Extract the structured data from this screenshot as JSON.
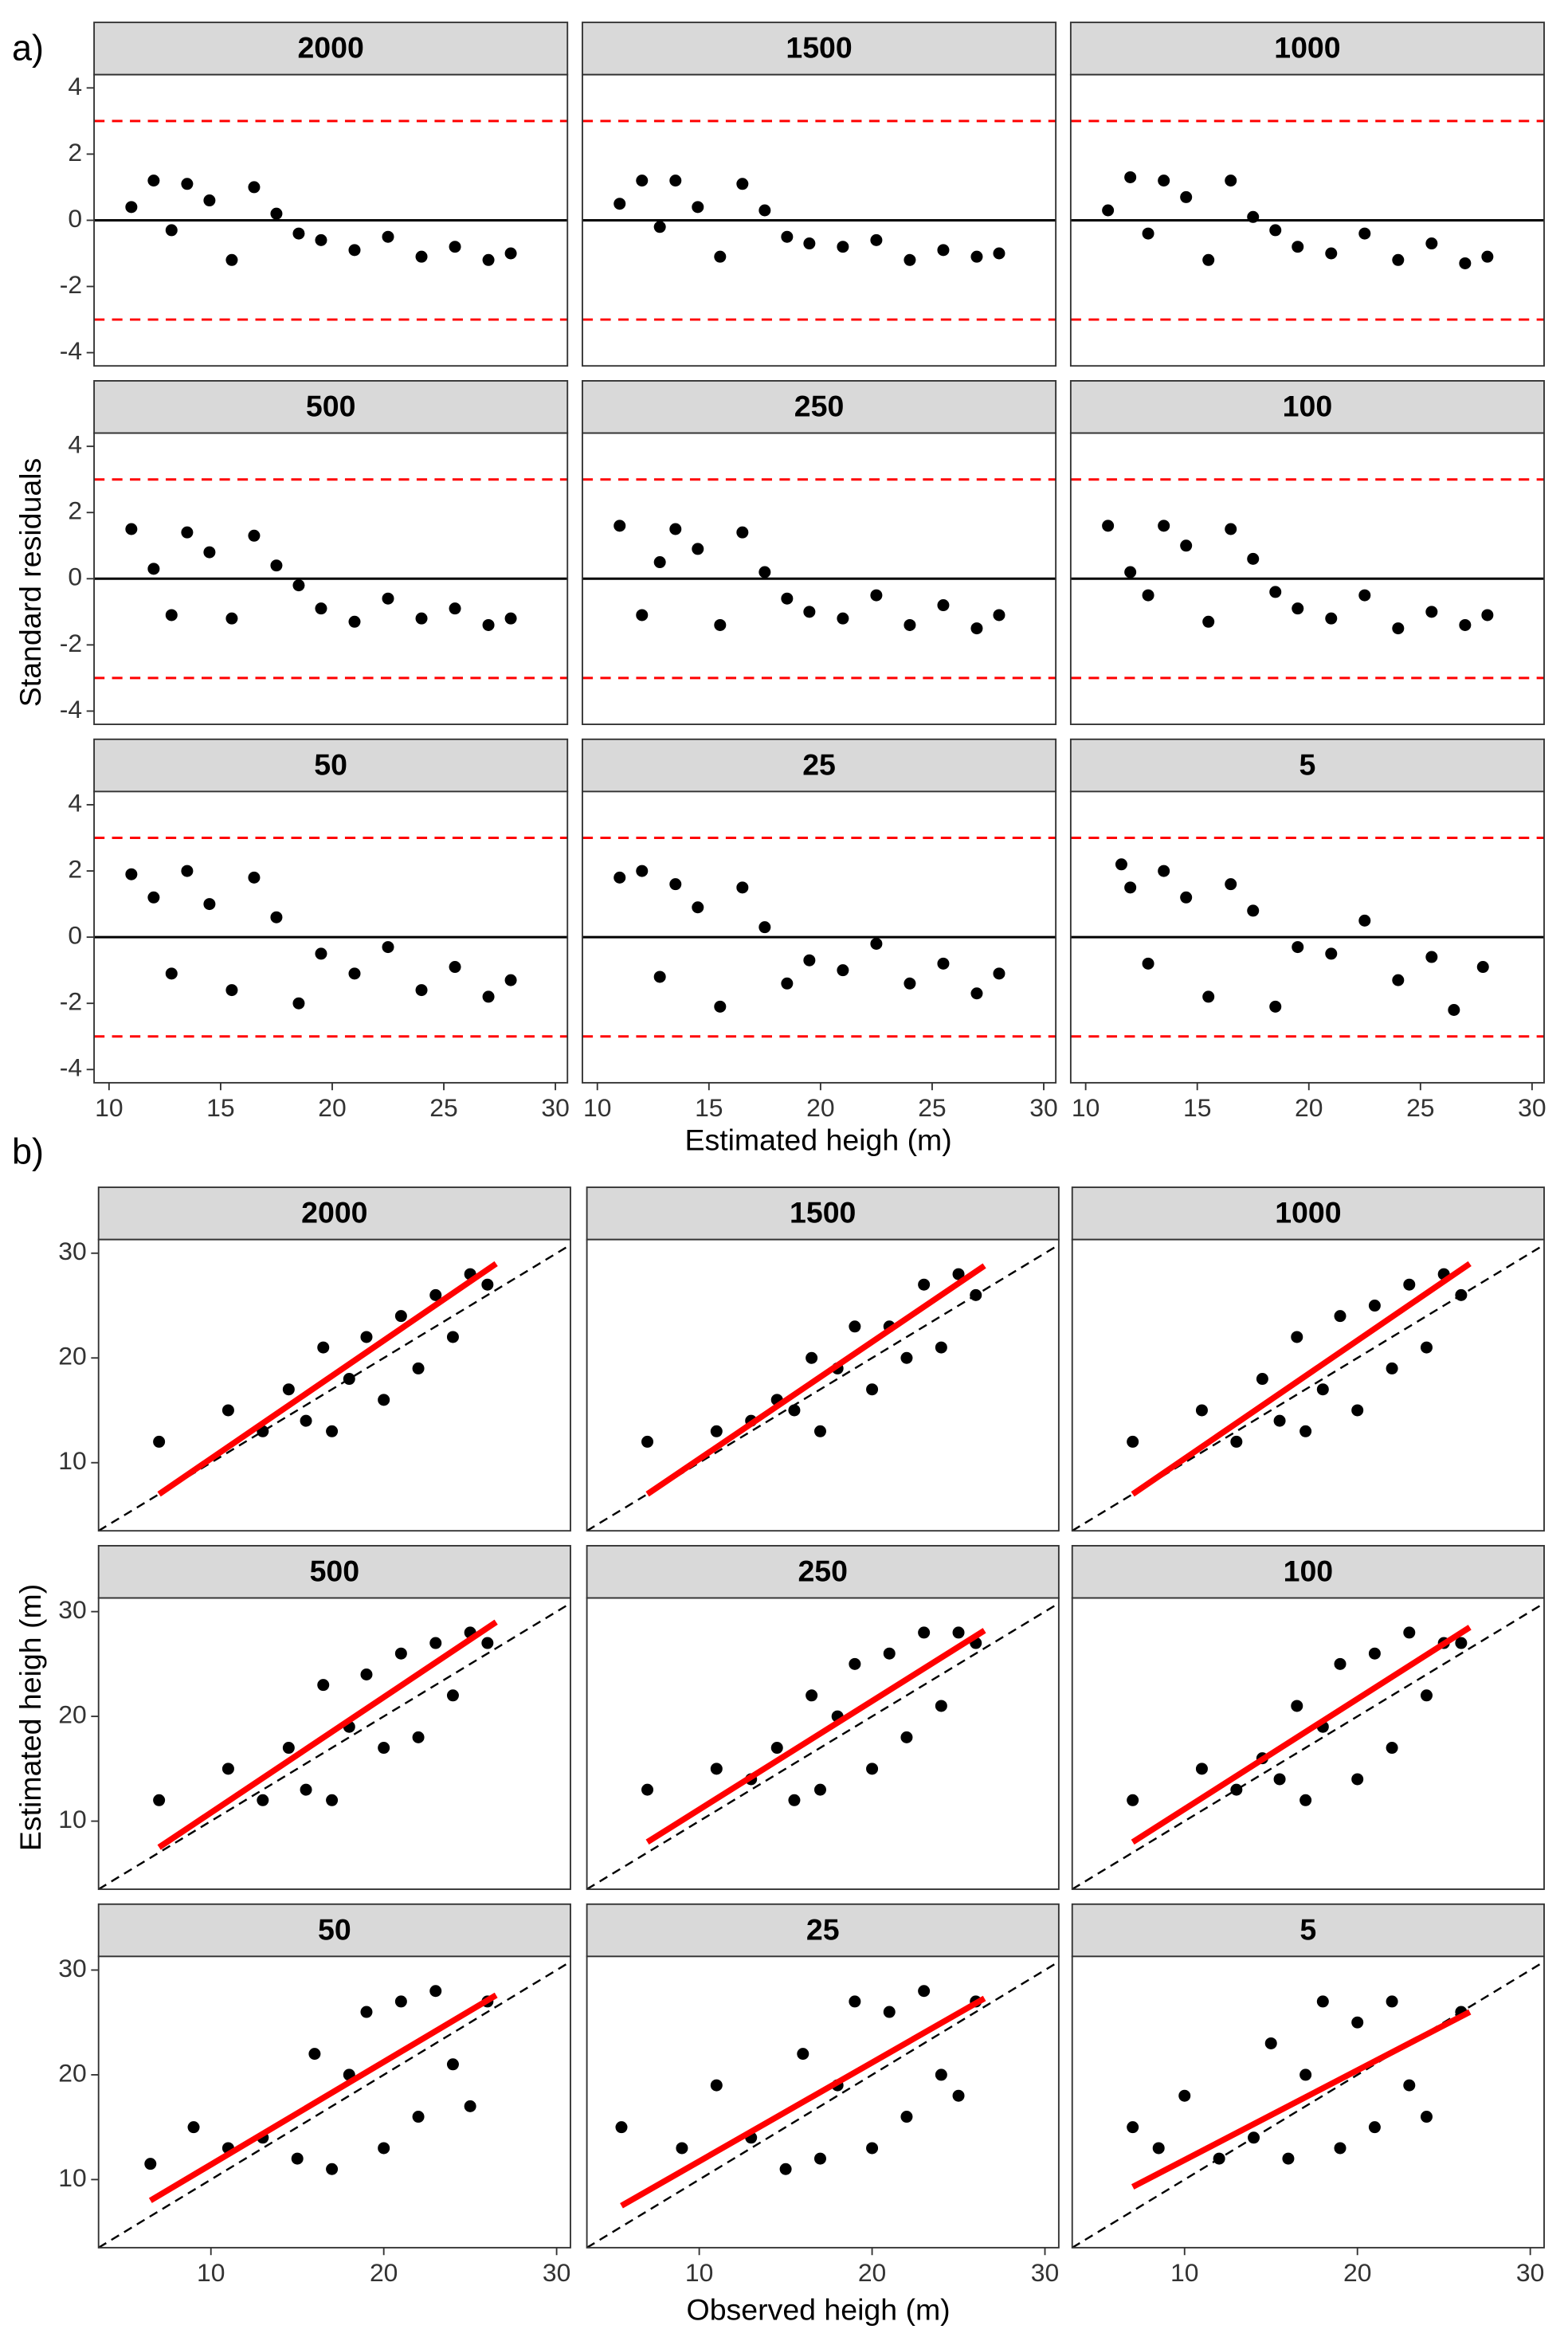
{
  "chart_data": [
    {
      "type": "scatter",
      "label": "a)",
      "xlabel": "Estimated heigh (m)",
      "ylabel": "Standard residuals",
      "xlim": [
        9.33,
        30.54
      ],
      "ylim": [
        -4.4,
        4.4
      ],
      "xticks": [
        10,
        15,
        20,
        25,
        30
      ],
      "yticks": [
        -4,
        -2,
        0,
        2,
        4
      ],
      "point_color": "#000000",
      "hlines": [
        {
          "value": 3,
          "color": "#ff0000",
          "dash": true
        },
        {
          "value": 0,
          "color": "#000000",
          "dash": false
        },
        {
          "value": -3,
          "color": "#ff0000",
          "dash": true
        }
      ],
      "panels": [
        {
          "title": "2000",
          "x": [
            11,
            12,
            12.8,
            13.5,
            14.5,
            15.5,
            16.5,
            17.5,
            18.5,
            19.5,
            21,
            22.5,
            24,
            25.5,
            27,
            28
          ],
          "y": [
            0.4,
            1.2,
            -0.3,
            1.1,
            0.6,
            -1.2,
            1.0,
            0.2,
            -0.4,
            -0.6,
            -0.9,
            -0.5,
            -1.1,
            -0.8,
            -1.2,
            -1.0
          ]
        },
        {
          "title": "1500",
          "x": [
            11,
            12,
            12.8,
            13.5,
            14.5,
            15.5,
            16.5,
            17.5,
            18.5,
            19.5,
            21,
            22.5,
            24,
            25.5,
            27,
            28
          ],
          "y": [
            0.5,
            1.2,
            -0.2,
            1.2,
            0.4,
            -1.1,
            1.1,
            0.3,
            -0.5,
            -0.7,
            -0.8,
            -0.6,
            -1.2,
            -0.9,
            -1.1,
            -1.0
          ]
        },
        {
          "title": "1000",
          "x": [
            11,
            12,
            12.8,
            13.5,
            14.5,
            15.5,
            16.5,
            17.5,
            18.5,
            19.5,
            21,
            22.5,
            24,
            25.5,
            27,
            28
          ],
          "y": [
            0.3,
            1.3,
            -0.4,
            1.2,
            0.7,
            -1.2,
            1.2,
            0.1,
            -0.3,
            -0.8,
            -1.0,
            -0.4,
            -1.2,
            -0.7,
            -1.3,
            -1.1
          ]
        },
        {
          "title": "500",
          "x": [
            11,
            12,
            12.8,
            13.5,
            14.5,
            15.5,
            16.5,
            17.5,
            18.5,
            19.5,
            21,
            22.5,
            24,
            25.5,
            27,
            28
          ],
          "y": [
            1.5,
            0.3,
            -1.1,
            1.4,
            0.8,
            -1.2,
            1.3,
            0.4,
            -0.2,
            -0.9,
            -1.3,
            -0.6,
            -1.2,
            -0.9,
            -1.4,
            -1.2
          ]
        },
        {
          "title": "250",
          "x": [
            11,
            12,
            12.8,
            13.5,
            14.5,
            15.5,
            16.5,
            17.5,
            18.5,
            19.5,
            21,
            22.5,
            24,
            25.5,
            27,
            28
          ],
          "y": [
            1.6,
            -1.1,
            0.5,
            1.5,
            0.9,
            -1.4,
            1.4,
            0.2,
            -0.6,
            -1.0,
            -1.2,
            -0.5,
            -1.4,
            -0.8,
            -1.5,
            -1.1
          ]
        },
        {
          "title": "100",
          "x": [
            11,
            12,
            12.8,
            13.5,
            14.5,
            15.5,
            16.5,
            17.5,
            18.5,
            19.5,
            21,
            22.5,
            24,
            25.5,
            27,
            28
          ],
          "y": [
            1.6,
            0.2,
            -0.5,
            1.6,
            1.0,
            -1.3,
            1.5,
            0.6,
            -0.4,
            -0.9,
            -1.2,
            -0.5,
            -1.5,
            -1.0,
            -1.4,
            -1.1
          ]
        },
        {
          "title": "50",
          "x": [
            11,
            12,
            12.8,
            13.5,
            14.5,
            15.5,
            16.5,
            17.5,
            18.5,
            19.5,
            21,
            22.5,
            24,
            25.5,
            27,
            28
          ],
          "y": [
            1.9,
            1.2,
            -1.1,
            2.0,
            1.0,
            -1.6,
            1.8,
            0.6,
            -2.0,
            -0.5,
            -1.1,
            -0.3,
            -1.6,
            -0.9,
            -1.8,
            -1.3
          ]
        },
        {
          "title": "25",
          "x": [
            11,
            12,
            12.8,
            13.5,
            14.5,
            15.5,
            16.5,
            17.5,
            18.5,
            19.5,
            21,
            22.5,
            24,
            25.5,
            27,
            28
          ],
          "y": [
            1.8,
            2.0,
            -1.2,
            1.6,
            0.9,
            -2.1,
            1.5,
            0.3,
            -1.4,
            -0.7,
            -1.0,
            -0.2,
            -1.4,
            -0.8,
            -1.7,
            -1.1
          ]
        },
        {
          "title": "5",
          "x": [
            11.6,
            12,
            12.8,
            13.5,
            14.5,
            15.5,
            16.5,
            17.5,
            18.5,
            19.5,
            21,
            22.5,
            24,
            25.5,
            26.5,
            27.8
          ],
          "y": [
            2.2,
            1.5,
            -0.8,
            2.0,
            1.2,
            -1.8,
            1.6,
            0.8,
            -2.1,
            -0.3,
            -0.5,
            0.5,
            -1.3,
            -0.6,
            -2.2,
            -0.9
          ]
        }
      ]
    },
    {
      "type": "scatter",
      "label": "b)",
      "xlabel": "Observed heigh (m)",
      "ylabel": "Estimated heigh (m)",
      "xlim": [
        3.5,
        30.8
      ],
      "ylim": [
        3.5,
        31.3
      ],
      "xticks": [
        10,
        20,
        30
      ],
      "yticks": [
        10,
        20,
        30
      ],
      "point_color": "#000000",
      "fit_color": "#ff0000",
      "reference": {
        "slope": 1,
        "intercept": 0,
        "color": "#000000",
        "dash": true
      },
      "panels": [
        {
          "title": "2000",
          "x": [
            7,
            11,
            13,
            14.5,
            15.5,
            16.5,
            17,
            18,
            19,
            20,
            21,
            22,
            23,
            24,
            25,
            26
          ],
          "y": [
            12,
            15,
            13,
            17,
            14,
            21,
            13,
            18,
            22,
            16,
            24,
            19,
            26,
            22,
            28,
            27
          ],
          "fit_x": [
            7,
            26.5
          ],
          "fit_y": [
            7,
            29
          ]
        },
        {
          "title": "1500",
          "x": [
            7,
            11,
            13,
            14.5,
            15.5,
            16.5,
            17,
            18,
            19,
            20,
            21,
            22,
            23,
            24,
            25,
            26
          ],
          "y": [
            12,
            13,
            14,
            16,
            15,
            20,
            13,
            19,
            23,
            17,
            23,
            20,
            27,
            21,
            28,
            26
          ],
          "fit_x": [
            7,
            26.5
          ],
          "fit_y": [
            7,
            28.8
          ]
        },
        {
          "title": "1000",
          "x": [
            7,
            11,
            13,
            14.5,
            15.5,
            16.5,
            17,
            18,
            19,
            20,
            21,
            22,
            23,
            24,
            25,
            26
          ],
          "y": [
            12,
            15,
            12,
            18,
            14,
            22,
            13,
            17,
            24,
            15,
            25,
            19,
            27,
            21,
            28,
            26
          ],
          "fit_x": [
            7,
            26.5
          ],
          "fit_y": [
            7,
            29
          ]
        },
        {
          "title": "500",
          "x": [
            7,
            11,
            13,
            14.5,
            15.5,
            16.5,
            17,
            18,
            19,
            20,
            21,
            22,
            23,
            24,
            25,
            26
          ],
          "y": [
            12,
            15,
            12,
            17,
            13,
            23,
            12,
            19,
            24,
            17,
            26,
            18,
            27,
            22,
            28,
            27
          ],
          "fit_x": [
            7,
            26.5
          ],
          "fit_y": [
            7.5,
            29
          ]
        },
        {
          "title": "250",
          "x": [
            7,
            11,
            13,
            14.5,
            15.5,
            16.5,
            17,
            18,
            19,
            20,
            21,
            22,
            23,
            24,
            25,
            26
          ],
          "y": [
            13,
            15,
            14,
            17,
            12,
            22,
            13,
            20,
            25,
            15,
            26,
            18,
            28,
            21,
            28,
            27
          ],
          "fit_x": [
            7,
            26.5
          ],
          "fit_y": [
            8,
            28.2
          ]
        },
        {
          "title": "100",
          "x": [
            7,
            11,
            13,
            14.5,
            15.5,
            16.5,
            17,
            18,
            19,
            20,
            21,
            22,
            23,
            24,
            25,
            26
          ],
          "y": [
            12,
            15,
            13,
            16,
            14,
            21,
            12,
            19,
            25,
            14,
            26,
            17,
            28,
            22,
            27,
            27
          ],
          "fit_x": [
            7,
            26.5
          ],
          "fit_y": [
            8,
            28.5
          ]
        },
        {
          "title": "50",
          "x": [
            6.5,
            9,
            11,
            13,
            15,
            16,
            17,
            18,
            19,
            20,
            21,
            22,
            23,
            24,
            25,
            26
          ],
          "y": [
            11.5,
            15,
            13,
            14,
            12,
            22,
            11,
            20,
            26,
            13,
            27,
            16,
            28,
            21,
            17,
            27
          ],
          "fit_x": [
            6.5,
            26.5
          ],
          "fit_y": [
            8,
            27.6
          ]
        },
        {
          "title": "25",
          "x": [
            5.5,
            9,
            11,
            13,
            15,
            16,
            17,
            18,
            19,
            20,
            21,
            22,
            23,
            24,
            25,
            26
          ],
          "y": [
            15,
            13,
            19,
            14,
            11,
            22,
            12,
            19,
            27,
            13,
            26,
            16,
            28,
            20,
            18,
            27
          ],
          "fit_x": [
            5.5,
            26.5
          ],
          "fit_y": [
            7.5,
            27.3
          ]
        },
        {
          "title": "5",
          "x": [
            7,
            8.5,
            10,
            12,
            14,
            15,
            16,
            17,
            18,
            19,
            20,
            21,
            22,
            23,
            24,
            26
          ],
          "y": [
            15,
            13,
            18,
            12,
            14,
            23,
            12,
            20,
            27,
            13,
            25,
            15,
            27,
            19,
            16,
            26
          ],
          "fit_x": [
            7,
            26.5
          ],
          "fit_y": [
            9.3,
            26
          ]
        }
      ]
    }
  ]
}
